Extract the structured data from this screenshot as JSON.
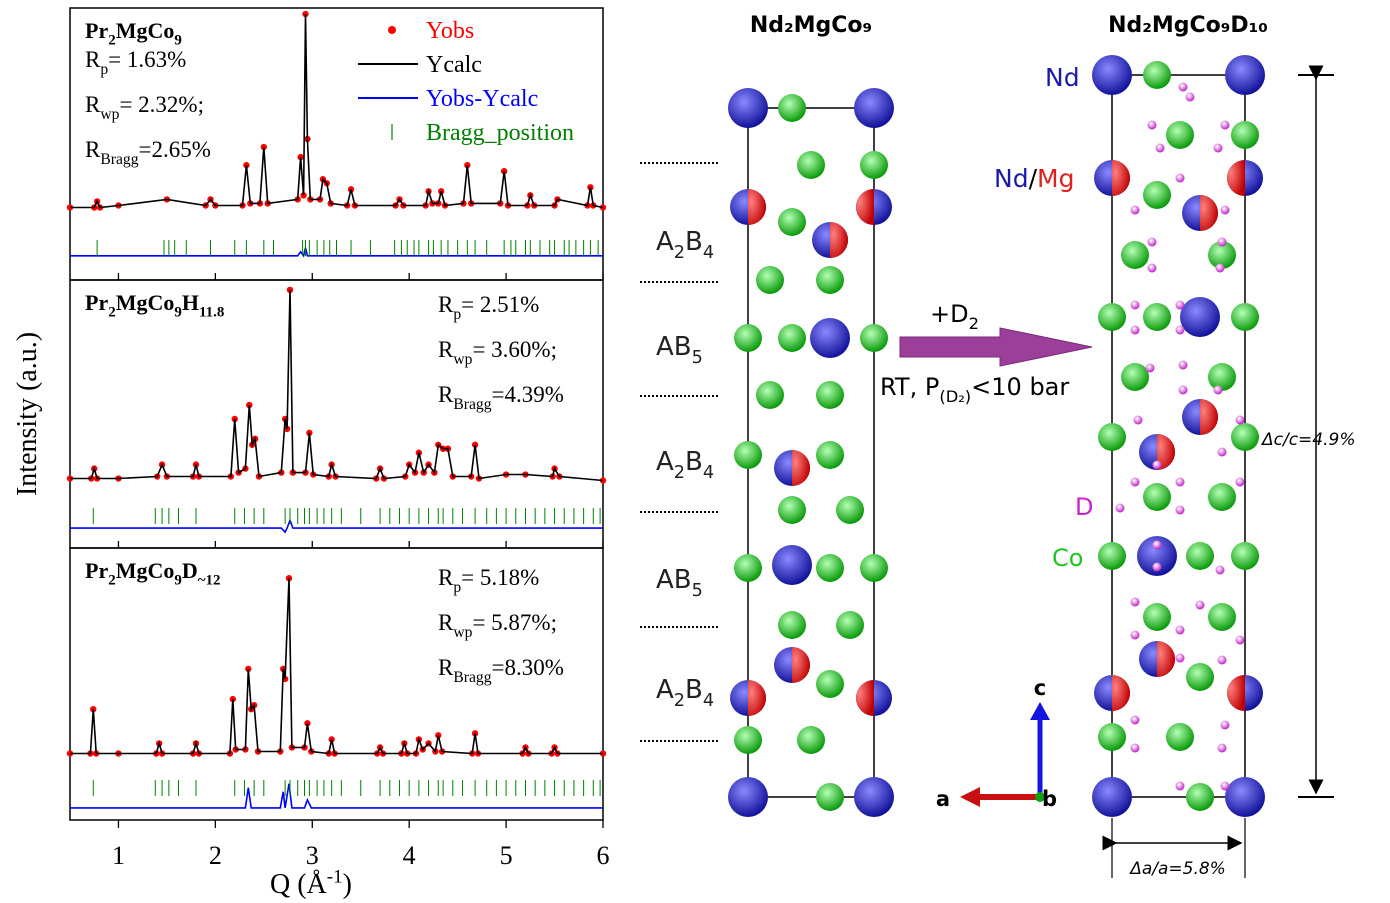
{
  "chart_data": [
    {
      "type": "line",
      "title": [
        "Pr",
        "2",
        "MgCo",
        "9"
      ],
      "annotations": [
        [
          "R",
          "p",
          "= 1.63%"
        ],
        [
          "R",
          "wp",
          "= 2.32%;"
        ],
        [
          "R",
          "Bragg",
          "=2.65%"
        ]
      ],
      "x": [
        0.5,
        0.75,
        0.78,
        0.81,
        1.0,
        1.5,
        1.9,
        1.95,
        2.0,
        2.28,
        2.32,
        2.36,
        2.46,
        2.5,
        2.54,
        2.85,
        2.88,
        2.91,
        2.93,
        2.95,
        2.98,
        3.08,
        3.11,
        3.15,
        3.19,
        3.36,
        3.4,
        3.44,
        3.86,
        3.9,
        3.94,
        4.17,
        4.2,
        4.24,
        4.3,
        4.33,
        4.37,
        4.56,
        4.6,
        4.64,
        4.94,
        4.98,
        5.02,
        5.22,
        5.25,
        5.29,
        5.5,
        5.53,
        5.84,
        5.87,
        5.9,
        6.0
      ],
      "xlim": [
        0.5,
        6
      ],
      "xticks": [
        1,
        2,
        3,
        4,
        5,
        6
      ],
      "ylim": [
        -30,
        105
      ],
      "legend": "top-right",
      "series": [
        {
          "name": "Yobs",
          "color": "#ff0000",
          "style": "markers",
          "values": [
            6,
            6,
            9,
            6,
            7,
            10,
            7,
            10,
            7,
            7,
            27,
            8,
            8,
            36,
            8,
            10,
            31,
            12,
            102,
            40,
            10,
            10,
            20,
            18,
            8,
            7,
            15,
            7,
            7,
            10,
            7,
            7,
            14,
            8,
            8,
            14,
            7,
            8,
            27,
            8,
            8,
            24,
            7,
            7,
            12,
            7,
            7,
            10,
            7,
            16,
            7,
            6
          ]
        },
        {
          "name": "Ycalc",
          "color": "#000000",
          "style": "line",
          "values": [
            6,
            6,
            9,
            6,
            7,
            10,
            7,
            10,
            7,
            7,
            27,
            8,
            8,
            36,
            8,
            10,
            31,
            12,
            102,
            40,
            10,
            10,
            20,
            18,
            8,
            7,
            15,
            7,
            7,
            10,
            7,
            7,
            14,
            8,
            8,
            14,
            7,
            8,
            27,
            8,
            8,
            24,
            7,
            7,
            12,
            7,
            7,
            10,
            7,
            16,
            7,
            6
          ]
        },
        {
          "name": "Yobs-Ycalc",
          "color": "#0000ff",
          "style": "line",
          "values": [
            -18,
            -18,
            -18,
            -18,
            -18,
            -18,
            -18,
            -18,
            -18,
            -18,
            -18,
            -18,
            -18,
            -18,
            -18,
            -18,
            -16,
            -18,
            -14,
            -18,
            -18,
            -18,
            -18,
            -18,
            -18,
            -18,
            -18,
            -18,
            -18,
            -18,
            -18,
            -18,
            -18,
            -18,
            -18,
            -18,
            -18,
            -18,
            -18,
            -18,
            -18,
            -18,
            -18,
            -18,
            -18,
            -18,
            -18,
            -18,
            -18,
            -18,
            -18,
            -18
          ]
        },
        {
          "name": "Bragg_position",
          "color": "#008000",
          "style": "ticks",
          "x": [
            0.78,
            1.47,
            1.52,
            1.58,
            1.7,
            1.95,
            2.2,
            2.32,
            2.5,
            2.6,
            2.9,
            2.93,
            2.97,
            3.05,
            3.12,
            3.18,
            3.25,
            3.4,
            3.6,
            3.85,
            3.92,
            3.98,
            4.05,
            4.1,
            4.2,
            4.25,
            4.33,
            4.4,
            4.5,
            4.6,
            4.68,
            4.8,
            4.98,
            5.05,
            5.1,
            5.2,
            5.25,
            5.35,
            5.45,
            5.5,
            5.6,
            5.65,
            5.72,
            5.8,
            5.87,
            5.95
          ]
        }
      ]
    },
    {
      "type": "line",
      "title": [
        "Pr",
        "2",
        "MgCo",
        "9",
        "H",
        "11.8"
      ],
      "annotations": [
        [
          "R",
          "p",
          "= 2.51%"
        ],
        [
          "R",
          "wp",
          "= 3.60%;"
        ],
        [
          "R",
          "Bragg",
          "=4.39%"
        ]
      ],
      "ylabel": "Intensity (a.u.)",
      "x": [
        0.5,
        0.72,
        0.75,
        0.78,
        1.0,
        1.4,
        1.45,
        1.5,
        1.77,
        1.8,
        1.83,
        2.16,
        2.2,
        2.24,
        2.31,
        2.35,
        2.38,
        2.41,
        2.45,
        2.68,
        2.72,
        2.74,
        2.77,
        2.8,
        2.93,
        2.97,
        3.01,
        3.17,
        3.2,
        3.24,
        3.66,
        3.7,
        3.74,
        3.96,
        4.0,
        4.06,
        4.1,
        4.15,
        4.2,
        4.26,
        4.3,
        4.35,
        4.4,
        4.45,
        4.64,
        4.68,
        4.72,
        5.0,
        5.2,
        5.48,
        5.5,
        5.55,
        6.0
      ],
      "xlim": [
        0.5,
        6
      ],
      "xticks": [
        1,
        2,
        3,
        4,
        5,
        6
      ],
      "ylim": [
        -30,
        105
      ],
      "series": [
        {
          "color": "#ff0000",
          "style": "markers",
          "values": [
            5,
            5,
            10,
            5,
            5,
            6,
            12,
            6,
            6,
            12,
            6,
            6,
            35,
            8,
            10,
            42,
            22,
            25,
            6,
            8,
            35,
            30,
            100,
            8,
            8,
            28,
            7,
            6,
            12,
            6,
            5,
            10,
            5,
            6,
            12,
            8,
            18,
            8,
            12,
            8,
            22,
            20,
            20,
            6,
            6,
            22,
            5,
            7,
            7,
            6,
            10,
            6,
            4
          ]
        },
        {
          "color": "#000000",
          "style": "line",
          "values": [
            5,
            5,
            10,
            5,
            5,
            6,
            12,
            6,
            6,
            12,
            6,
            6,
            35,
            8,
            10,
            42,
            22,
            25,
            6,
            8,
            35,
            30,
            100,
            8,
            8,
            28,
            7,
            6,
            12,
            6,
            5,
            10,
            5,
            6,
            12,
            8,
            18,
            8,
            12,
            8,
            22,
            20,
            20,
            6,
            6,
            22,
            5,
            7,
            7,
            6,
            10,
            6,
            4
          ]
        },
        {
          "color": "#0000ff",
          "style": "line",
          "values": [
            -20,
            -20,
            -20,
            -20,
            -20,
            -20,
            -20,
            -20,
            -20,
            -20,
            -20,
            -20,
            -20,
            -20,
            -20,
            -20,
            -20,
            -20,
            -20,
            -20,
            -22,
            -20,
            -16,
            -20,
            -20,
            -20,
            -20,
            -20,
            -20,
            -20,
            -20,
            -20,
            -20,
            -20,
            -20,
            -20,
            -20,
            -20,
            -20,
            -20,
            -20,
            -20,
            -20,
            -20,
            -20,
            -20,
            -20,
            -20,
            -20,
            -20,
            -20,
            -20,
            -20
          ]
        },
        {
          "color": "#008000",
          "style": "ticks",
          "x": [
            0.74,
            1.38,
            1.45,
            1.52,
            1.62,
            1.8,
            2.2,
            2.3,
            2.4,
            2.5,
            2.72,
            2.77,
            2.85,
            2.92,
            2.97,
            3.05,
            3.12,
            3.2,
            3.3,
            3.5,
            3.7,
            3.8,
            3.9,
            4.0,
            4.1,
            4.2,
            4.3,
            4.35,
            4.45,
            4.55,
            4.68,
            4.8,
            4.9,
            5.0,
            5.1,
            5.2,
            5.3,
            5.4,
            5.5,
            5.6,
            5.7,
            5.8,
            5.9,
            5.97
          ]
        }
      ]
    },
    {
      "type": "line",
      "title": [
        "Pr",
        "2",
        "MgCo",
        "9",
        "D",
        "~12"
      ],
      "annotations": [
        [
          "R",
          "p",
          "= 5.18%"
        ],
        [
          "R",
          "wp",
          "= 5.87%;"
        ],
        [
          "R",
          "Bragg",
          "=8.30%"
        ]
      ],
      "xlabel": [
        "Q (Å",
        "-1",
        ")"
      ],
      "x": [
        0.5,
        0.71,
        0.74,
        0.77,
        1.0,
        1.39,
        1.42,
        1.45,
        1.77,
        1.8,
        1.83,
        2.15,
        2.18,
        2.21,
        2.31,
        2.34,
        2.37,
        2.4,
        2.44,
        2.67,
        2.7,
        2.72,
        2.76,
        2.79,
        2.92,
        2.95,
        2.99,
        3.17,
        3.2,
        3.23,
        3.67,
        3.7,
        3.73,
        3.92,
        3.95,
        3.98,
        4.07,
        4.1,
        4.14,
        4.2,
        4.27,
        4.3,
        4.34,
        4.65,
        4.68,
        4.71,
        5.17,
        5.2,
        5.23,
        5.47,
        5.5,
        5.53,
        6.0
      ],
      "xlim": [
        0.5,
        6
      ],
      "xticks": [
        1,
        2,
        3,
        4,
        5,
        6
      ],
      "ylim": [
        -30,
        105
      ],
      "series": [
        {
          "color": "#ff0000",
          "style": "markers",
          "values": [
            3,
            3,
            25,
            3,
            3,
            3,
            8,
            3,
            3,
            8,
            3,
            3,
            30,
            5,
            5,
            45,
            25,
            27,
            4,
            4,
            45,
            40,
            90,
            6,
            6,
            18,
            4,
            3,
            10,
            3,
            3,
            6,
            3,
            3,
            8,
            3,
            3,
            10,
            5,
            8,
            4,
            12,
            4,
            3,
            13,
            3,
            3,
            6,
            3,
            3,
            6,
            3,
            3
          ]
        },
        {
          "color": "#000000",
          "style": "line",
          "values": [
            3,
            3,
            25,
            3,
            3,
            3,
            8,
            3,
            3,
            8,
            3,
            3,
            30,
            5,
            5,
            45,
            25,
            27,
            4,
            4,
            45,
            40,
            90,
            6,
            6,
            18,
            4,
            3,
            10,
            3,
            3,
            6,
            3,
            3,
            8,
            3,
            3,
            10,
            5,
            8,
            4,
            12,
            4,
            3,
            13,
            3,
            3,
            6,
            3,
            3,
            6,
            3,
            3
          ]
        },
        {
          "color": "#0000ff",
          "style": "line",
          "values": [
            -24,
            -24,
            -24,
            -24,
            -24,
            -24,
            -24,
            -24,
            -24,
            -24,
            -24,
            -24,
            -24,
            -24,
            -24,
            -14,
            -24,
            -24,
            -24,
            -24,
            -16,
            -24,
            -12,
            -24,
            -24,
            -20,
            -24,
            -24,
            -24,
            -24,
            -24,
            -24,
            -24,
            -24,
            -24,
            -24,
            -24,
            -24,
            -24,
            -24,
            -24,
            -24,
            -24,
            -24,
            -24,
            -24,
            -24,
            -24,
            -24,
            -24,
            -24,
            -24,
            -24
          ]
        },
        {
          "color": "#008000",
          "style": "ticks",
          "x": [
            0.74,
            1.38,
            1.45,
            1.52,
            1.62,
            1.8,
            2.2,
            2.3,
            2.4,
            2.5,
            2.72,
            2.77,
            2.85,
            2.92,
            2.97,
            3.05,
            3.12,
            3.2,
            3.3,
            3.5,
            3.7,
            3.8,
            3.9,
            4.0,
            4.1,
            4.2,
            4.3,
            4.35,
            4.45,
            4.55,
            4.68,
            4.8,
            4.9,
            5.0,
            5.1,
            5.2,
            5.3,
            5.4,
            5.5,
            5.6,
            5.7,
            5.8,
            5.9,
            5.97
          ]
        }
      ]
    }
  ],
  "structure": {
    "left_title": "Nd₂MgCo₉",
    "right_title": "Nd₂MgCo₉D₁₀",
    "layers": [
      [
        "A",
        "2",
        "B",
        "4"
      ],
      [
        "AB",
        "5"
      ],
      [
        "A",
        "2",
        "B",
        "4"
      ],
      [
        "AB",
        "5"
      ],
      [
        "A",
        "2",
        "B",
        "4"
      ]
    ],
    "arrow_top": [
      "+D",
      "2"
    ],
    "arrow_bottom": [
      "RT, P",
      "(D₂)",
      "<10 bar"
    ],
    "nd": "Nd",
    "nd_mg": [
      "Nd",
      "/",
      "Mg"
    ],
    "d": "D",
    "co": "Co",
    "dc": "Δc/c=4.9%",
    "da": "Δa/a=5.8%",
    "axis_c": "c",
    "axis_a": "a",
    "axis_b": "b"
  }
}
